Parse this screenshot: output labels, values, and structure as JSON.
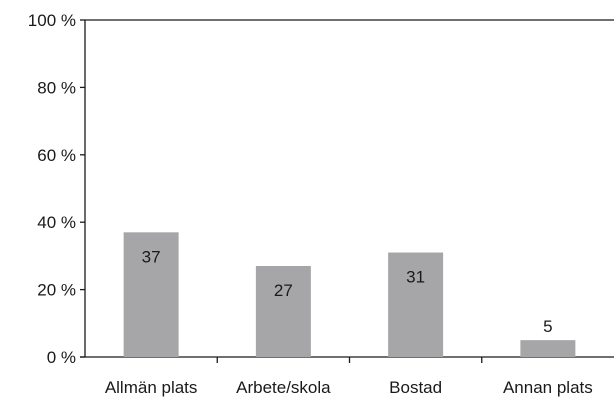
{
  "chart_data": {
    "type": "bar",
    "categories": [
      "Allmän plats",
      "Arbete/skola",
      "Bostad",
      "Annan plats"
    ],
    "values": [
      37,
      27,
      31,
      5
    ],
    "data_labels": [
      "37",
      "27",
      "31",
      "5"
    ],
    "ylim": [
      0,
      100
    ],
    "yticks": [
      0,
      20,
      40,
      60,
      80,
      100
    ],
    "ytick_labels": [
      "0 %",
      "20 %",
      "40 %",
      "60 %",
      "80 %",
      "100 %"
    ],
    "bar_color": "#a6a6a9",
    "axis_color": "#1a1a1a",
    "grid": false,
    "legend": "none"
  }
}
